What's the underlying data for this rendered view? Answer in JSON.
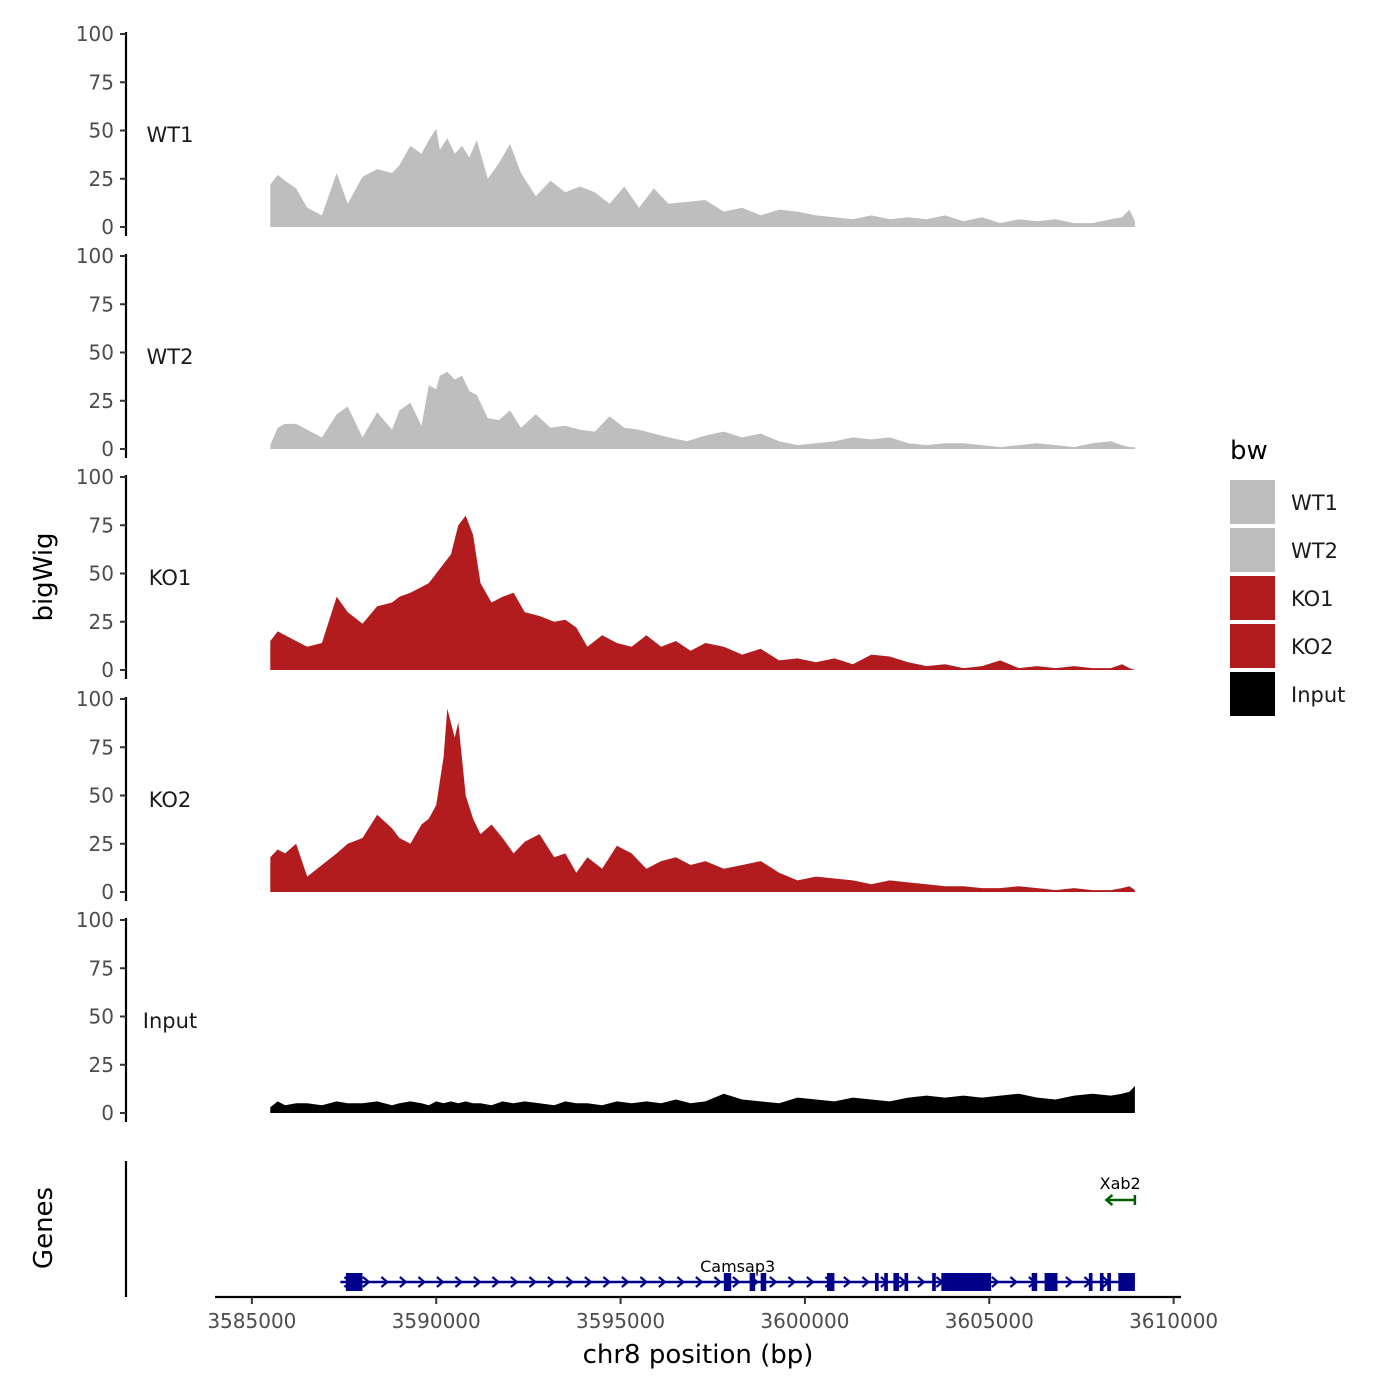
{
  "chart_data": {
    "type": "area",
    "ylabel": "bigWig",
    "xlabel": "chr8 position (bp)",
    "xlim": [
      3584000,
      3610200
    ],
    "ylim": [
      0,
      100
    ],
    "y_ticks": [
      0,
      25,
      50,
      75,
      100
    ],
    "x_ticks": [
      3585000,
      3590000,
      3595000,
      3600000,
      3605000,
      3610000
    ],
    "x_tick_labels": [
      "3585000",
      "3590000",
      "3595000",
      "3600000",
      "3605000",
      "3610000"
    ],
    "legend": {
      "title": "bw",
      "position": "right"
    },
    "series": [
      {
        "name": "WT1",
        "color": "#bebebe",
        "x": [
          3585500,
          3585700,
          3585900,
          3586200,
          3586500,
          3586900,
          3587300,
          3587600,
          3588000,
          3588400,
          3588800,
          3589000,
          3589300,
          3589600,
          3589800,
          3590000,
          3590100,
          3590300,
          3590500,
          3590700,
          3590900,
          3591100,
          3591400,
          3591700,
          3592000,
          3592300,
          3592700,
          3593100,
          3593500,
          3593900,
          3594300,
          3594700,
          3595100,
          3595500,
          3595900,
          3596300,
          3596800,
          3597300,
          3597800,
          3598300,
          3598800,
          3599300,
          3599800,
          3600300,
          3600800,
          3601300,
          3601800,
          3602300,
          3602800,
          3603300,
          3603800,
          3604300,
          3604800,
          3605300,
          3605800,
          3606300,
          3606800,
          3607300,
          3607800,
          3608300,
          3608600,
          3608800,
          3608950
        ],
        "values": [
          22,
          27,
          24,
          20,
          10,
          6,
          28,
          12,
          26,
          30,
          28,
          32,
          42,
          38,
          45,
          51,
          40,
          46,
          38,
          42,
          36,
          45,
          25,
          33,
          43,
          28,
          16,
          24,
          18,
          21,
          18,
          12,
          21,
          10,
          20,
          12,
          13,
          14,
          8,
          10,
          6,
          9,
          8,
          6,
          5,
          4,
          6,
          4,
          5,
          4,
          6,
          3,
          5,
          2,
          4,
          3,
          4,
          2,
          2,
          4,
          5,
          9,
          3
        ]
      },
      {
        "name": "WT2",
        "color": "#bebebe",
        "x": [
          3585500,
          3585700,
          3585900,
          3586200,
          3586500,
          3586900,
          3587300,
          3587600,
          3588000,
          3588400,
          3588800,
          3589000,
          3589300,
          3589600,
          3589800,
          3590000,
          3590100,
          3590300,
          3590500,
          3590700,
          3590900,
          3591100,
          3591400,
          3591700,
          3592000,
          3592300,
          3592700,
          3593100,
          3593500,
          3593900,
          3594300,
          3594700,
          3595100,
          3595500,
          3595900,
          3596300,
          3596800,
          3597300,
          3597800,
          3598300,
          3598800,
          3599300,
          3599800,
          3600300,
          3600800,
          3601300,
          3601800,
          3602300,
          3602800,
          3603300,
          3603800,
          3604300,
          3604800,
          3605300,
          3605800,
          3606300,
          3606800,
          3607300,
          3607800,
          3608300,
          3608600,
          3608800,
          3608950
        ],
        "values": [
          2,
          11,
          13,
          13,
          10,
          6,
          18,
          22,
          6,
          19,
          10,
          20,
          24,
          12,
          33,
          31,
          38,
          40,
          36,
          38,
          30,
          28,
          16,
          15,
          20,
          11,
          18,
          11,
          12,
          10,
          9,
          17,
          11,
          10,
          8,
          6,
          4,
          7,
          9,
          6,
          8,
          4,
          2,
          3,
          4,
          6,
          5,
          6,
          3,
          2,
          3,
          3,
          2,
          1,
          2,
          3,
          2,
          1,
          3,
          4,
          2,
          1,
          1
        ]
      },
      {
        "name": "KO1",
        "color": "#b21c1f",
        "x": [
          3585500,
          3585700,
          3585900,
          3586200,
          3586500,
          3586900,
          3587300,
          3587600,
          3588000,
          3588400,
          3588800,
          3589000,
          3589300,
          3589600,
          3589800,
          3590000,
          3590200,
          3590400,
          3590600,
          3590800,
          3591000,
          3591200,
          3591500,
          3591800,
          3592100,
          3592400,
          3592800,
          3593200,
          3593500,
          3593800,
          3594100,
          3594500,
          3594900,
          3595300,
          3595700,
          3596100,
          3596500,
          3596900,
          3597300,
          3597800,
          3598300,
          3598800,
          3599300,
          3599800,
          3600300,
          3600800,
          3601300,
          3601800,
          3602300,
          3602800,
          3603300,
          3603800,
          3604300,
          3604800,
          3605300,
          3605800,
          3606300,
          3606800,
          3607300,
          3607800,
          3608300,
          3608600,
          3608800,
          3608950
        ],
        "values": [
          15,
          20,
          18,
          15,
          12,
          14,
          38,
          30,
          24,
          33,
          35,
          38,
          40,
          43,
          45,
          50,
          55,
          60,
          75,
          80,
          70,
          45,
          35,
          38,
          40,
          30,
          28,
          25,
          26,
          22,
          12,
          18,
          14,
          12,
          18,
          12,
          15,
          10,
          14,
          12,
          8,
          11,
          5,
          6,
          4,
          6,
          3,
          8,
          7,
          4,
          2,
          3,
          1,
          2,
          5,
          1,
          2,
          1,
          2,
          1,
          1,
          3,
          1,
          0
        ]
      },
      {
        "name": "KO2",
        "color": "#b21c1f",
        "x": [
          3585500,
          3585700,
          3585900,
          3586200,
          3586500,
          3586900,
          3587300,
          3587600,
          3588000,
          3588400,
          3588800,
          3589000,
          3589300,
          3589600,
          3589800,
          3590000,
          3590200,
          3590300,
          3590500,
          3590600,
          3590800,
          3591000,
          3591200,
          3591500,
          3591800,
          3592100,
          3592400,
          3592800,
          3593200,
          3593500,
          3593800,
          3594100,
          3594500,
          3594900,
          3595300,
          3595700,
          3596100,
          3596500,
          3596900,
          3597300,
          3597800,
          3598300,
          3598800,
          3599300,
          3599800,
          3600300,
          3600800,
          3601300,
          3601800,
          3602300,
          3602800,
          3603300,
          3603800,
          3604300,
          3604800,
          3605300,
          3605800,
          3606300,
          3606800,
          3607300,
          3607800,
          3608300,
          3608600,
          3608800,
          3608950
        ],
        "values": [
          18,
          22,
          20,
          25,
          8,
          14,
          20,
          25,
          28,
          40,
          33,
          28,
          25,
          35,
          38,
          45,
          70,
          95,
          80,
          88,
          50,
          38,
          30,
          35,
          28,
          20,
          26,
          30,
          18,
          20,
          10,
          18,
          12,
          24,
          20,
          12,
          16,
          18,
          14,
          16,
          12,
          14,
          16,
          10,
          6,
          8,
          7,
          6,
          4,
          6,
          5,
          4,
          3,
          3,
          2,
          2,
          3,
          2,
          1,
          2,
          1,
          1,
          2,
          3,
          1
        ]
      },
      {
        "name": "Input",
        "color": "#000000",
        "x": [
          3585500,
          3585700,
          3585900,
          3586200,
          3586500,
          3586900,
          3587300,
          3587600,
          3588000,
          3588400,
          3588800,
          3589000,
          3589300,
          3589600,
          3589800,
          3590000,
          3590200,
          3590400,
          3590600,
          3590800,
          3591000,
          3591200,
          3591500,
          3591800,
          3592100,
          3592400,
          3592800,
          3593200,
          3593500,
          3593800,
          3594100,
          3594500,
          3594900,
          3595300,
          3595700,
          3596100,
          3596500,
          3596900,
          3597300,
          3597800,
          3598300,
          3598800,
          3599300,
          3599800,
          3600300,
          3600800,
          3601300,
          3601800,
          3602300,
          3602800,
          3603300,
          3603800,
          3604300,
          3604800,
          3605300,
          3605800,
          3606300,
          3606800,
          3607300,
          3607800,
          3608300,
          3608600,
          3608800,
          3608950
        ],
        "values": [
          3,
          6,
          4,
          5,
          5,
          4,
          6,
          5,
          5,
          6,
          4,
          5,
          6,
          5,
          4,
          6,
          5,
          6,
          5,
          6,
          5,
          5,
          4,
          6,
          5,
          6,
          5,
          4,
          6,
          5,
          5,
          4,
          6,
          5,
          6,
          5,
          7,
          5,
          6,
          10,
          7,
          6,
          5,
          8,
          7,
          6,
          8,
          7,
          6,
          8,
          9,
          8,
          9,
          8,
          9,
          10,
          8,
          7,
          9,
          10,
          9,
          10,
          11,
          14
        ]
      }
    ]
  },
  "genes": {
    "track_label": "Genes",
    "items": [
      {
        "name": "Camsap3",
        "strand": "+",
        "start": 3587400,
        "end": 3608950,
        "color": "#00008b",
        "exons": [
          [
            3587550,
            3588000
          ],
          [
            3597800,
            3598000
          ],
          [
            3598500,
            3598650
          ],
          [
            3598800,
            3598950
          ],
          [
            3600600,
            3600800
          ],
          [
            3601900,
            3602000
          ],
          [
            3602150,
            3602250
          ],
          [
            3602400,
            3602550
          ],
          [
            3602700,
            3602800
          ],
          [
            3603450,
            3603550
          ],
          [
            3603700,
            3605050
          ],
          [
            3606150,
            3606300
          ],
          [
            3606500,
            3606850
          ],
          [
            3607700,
            3607800
          ],
          [
            3608000,
            3608100
          ],
          [
            3608200,
            3608300
          ],
          [
            3608500,
            3608950
          ]
        ]
      },
      {
        "name": "Xab2",
        "strand": "-",
        "start": 3608150,
        "end": 3608950,
        "color": "#006400",
        "exons": []
      }
    ]
  }
}
